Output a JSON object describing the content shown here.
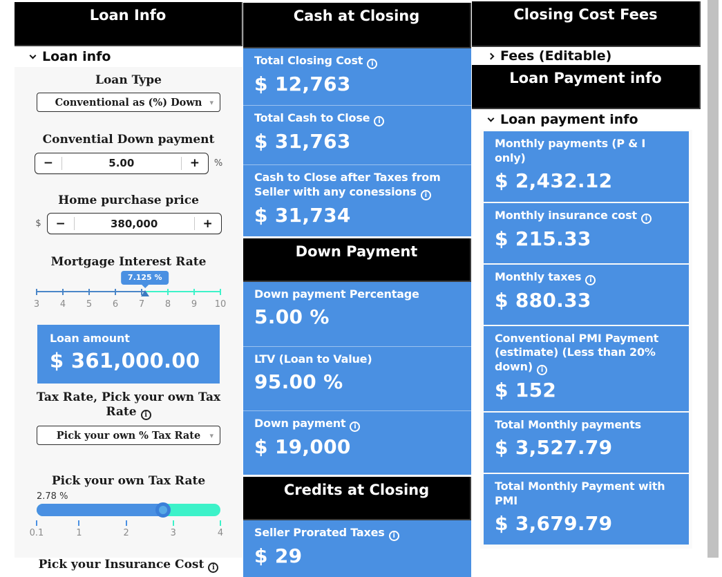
{
  "colors": {
    "accent_blue": "#4a90e2",
    "slider_blue": "#4a86c8",
    "teal": "#3df2c9",
    "header_bg": "#000000",
    "scrollbar": "#c1c1c1"
  },
  "loan_info": {
    "header": "Loan Info",
    "section_label": "Loan info",
    "loan_type_label": "Loan Type",
    "loan_type_value": "Conventional as (%) Down",
    "down_payment_label": "Convential Down payment",
    "down_payment_value": "5.00",
    "down_payment_unit": "%",
    "purchase_price_label": "Home purchase price",
    "purchase_price_prefix": "$",
    "purchase_price_value": "380,000",
    "interest_label": "Mortgage Interest Rate",
    "interest_slider": {
      "min": 3,
      "max": 10,
      "value": 7.125,
      "tooltip": "7.125 %",
      "tick_values": [
        3,
        4,
        5,
        6,
        7,
        8,
        9,
        10
      ],
      "tick_labels": [
        "3",
        "4",
        "5",
        "6",
        "7",
        "8",
        "9",
        "10"
      ]
    },
    "loan_amount_label": "Loan amount",
    "loan_amount_value": "$ 361,000.00",
    "tax_rate_label": "Tax Rate, Pick your own Tax Rate",
    "tax_rate_select_value": "Pick your own % Tax Rate",
    "own_tax_rate_label": "Pick your own Tax Rate",
    "tax_slider": {
      "min": 0.1,
      "max": 4,
      "value": 2.78,
      "value_label": "2.78 %",
      "tick_values": [
        0.1,
        1,
        2,
        3,
        4
      ],
      "tick_labels": [
        "0.1",
        "1",
        "2",
        "3",
        "4"
      ]
    },
    "insurance_label": "Pick your Insurance Cost"
  },
  "cash_at_closing": {
    "header": "Cash at Closing",
    "cards": [
      {
        "label": "Total Closing Cost",
        "info": true,
        "value": "$ 12,763"
      },
      {
        "label": "Total Cash to Close",
        "info": true,
        "value": "$ 31,763"
      },
      {
        "label": "Cash to Close after Taxes from Seller with any conessions",
        "info": true,
        "value": "$ 31,734"
      }
    ]
  },
  "down_payment": {
    "header": "Down Payment",
    "cards": [
      {
        "label": "Down payment Percentage",
        "info": false,
        "value": "5.00 %"
      },
      {
        "label": "LTV (Loan to Value)",
        "info": false,
        "value": "95.00 %"
      },
      {
        "label": "Down payment",
        "info": true,
        "value": "$ 19,000"
      }
    ]
  },
  "credits_at_closing": {
    "header": "Credits at Closing",
    "cards": [
      {
        "label": "Seller Prorated Taxes",
        "info": true,
        "value": "$ 29"
      }
    ]
  },
  "closing_cost_fees": {
    "header": "Closing Cost Fees",
    "fees_section_label": "Fees (Editable)"
  },
  "loan_payment": {
    "header": "Loan Payment info",
    "section_label": "Loan payment info",
    "cards": [
      {
        "label": "Monthly payments (P & I only)",
        "info": false,
        "value": "$ 2,432.12"
      },
      {
        "label": "Monthly insurance cost",
        "info": true,
        "value": "$ 215.33"
      },
      {
        "label": "Monthly taxes",
        "info": true,
        "value": "$ 880.33"
      },
      {
        "label": "Conventional PMI Payment (estimate) (Less than 20% down)",
        "info": true,
        "value": "$ 152"
      },
      {
        "label": "Total Monthly payments",
        "info": false,
        "value": "$ 3,527.79"
      },
      {
        "label": "Total Monthly Payment with PMI",
        "info": false,
        "value": "$ 3,679.79"
      }
    ]
  }
}
